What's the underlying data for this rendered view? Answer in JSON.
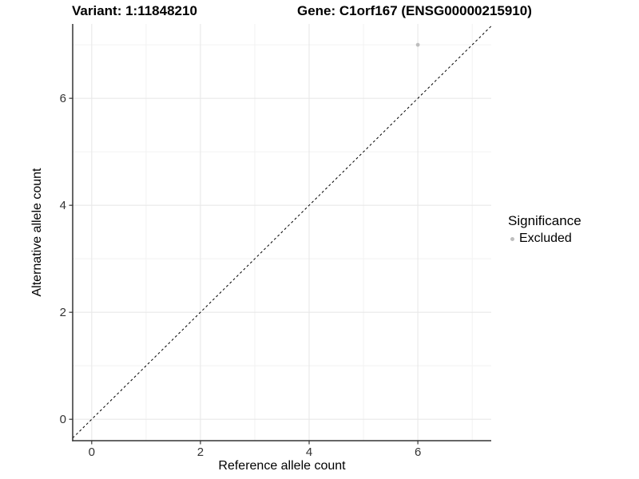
{
  "header": {
    "variant_title": "Variant: 1:11848210",
    "gene_title": "Gene: C1orf167 (ENSG00000215910)"
  },
  "legend": {
    "title": "Significance",
    "items": [
      {
        "label": "Excluded",
        "color": "#bebebe"
      }
    ]
  },
  "colors": {
    "axis": "#333333",
    "tick_text": "#333333",
    "grid_major": "#e8e8e8",
    "grid_minor": "#f2f2f2",
    "point": "#bebebe",
    "reference_line": "#000000"
  },
  "chart_data": {
    "type": "scatter",
    "title": "Variant: 1:11848210 | Gene: C1orf167 (ENSG00000215910)",
    "xlabel": "Reference allele count",
    "ylabel": "Alternative allele count",
    "xlim": [
      -0.35,
      7.35
    ],
    "ylim": [
      -0.4,
      7.39
    ],
    "x_ticks": [
      0,
      2,
      4,
      6
    ],
    "y_ticks": [
      0,
      2,
      4,
      6
    ],
    "x_minor_ticks": [
      1,
      3,
      5,
      7
    ],
    "y_minor_ticks": [
      1,
      3,
      5,
      7
    ],
    "grid": true,
    "legend_position": "right",
    "series": [
      {
        "name": "Excluded",
        "color": "#bebebe",
        "points": [
          {
            "x": 6,
            "y": 7
          }
        ]
      }
    ],
    "reference_line": {
      "kind": "identity",
      "dashed": true,
      "color": "#000000"
    }
  }
}
